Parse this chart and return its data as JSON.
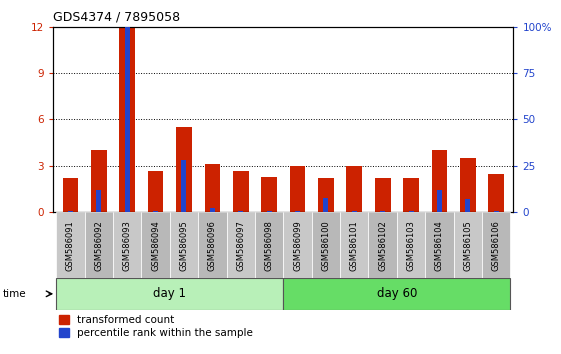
{
  "title": "GDS4374 / 7895058",
  "samples": [
    "GSM586091",
    "GSM586092",
    "GSM586093",
    "GSM586094",
    "GSM586095",
    "GSM586096",
    "GSM586097",
    "GSM586098",
    "GSM586099",
    "GSM586100",
    "GSM586101",
    "GSM586102",
    "GSM586103",
    "GSM586104",
    "GSM586105",
    "GSM586106"
  ],
  "red_values": [
    2.2,
    4.0,
    12.0,
    2.7,
    5.5,
    3.1,
    2.7,
    2.3,
    3.0,
    2.2,
    3.0,
    2.2,
    2.2,
    4.0,
    3.5,
    2.5
  ],
  "blue_percentiles": [
    1.0,
    12.0,
    100.0,
    1.0,
    28.0,
    2.5,
    1.0,
    1.0,
    1.0,
    8.0,
    1.0,
    1.0,
    1.0,
    12.0,
    7.0,
    1.0
  ],
  "day1_count": 8,
  "day60_count": 8,
  "day1_label": "day 1",
  "day60_label": "day 60",
  "red_color": "#cc2200",
  "blue_color": "#2244cc",
  "ylim_left": [
    0,
    12
  ],
  "ylim_right": [
    0,
    100
  ],
  "yticks_left": [
    0,
    3,
    6,
    9,
    12
  ],
  "yticks_right": [
    0,
    25,
    50,
    75,
    100
  ],
  "bar_width": 0.55,
  "blue_bar_width": 0.18,
  "group_bg_day1": "#b8f0b8",
  "group_bg_day60": "#66dd66",
  "xticklabel_fontsize": 6.0,
  "title_fontsize": 9,
  "legend_red": "transformed count",
  "legend_blue": "percentile rank within the sample",
  "time_label": "time",
  "tick_color_left": "#cc2200",
  "tick_color_right": "#2244cc",
  "label_bg_color": "#c8c8c8",
  "label_bg_color2": "#b8b8b8"
}
